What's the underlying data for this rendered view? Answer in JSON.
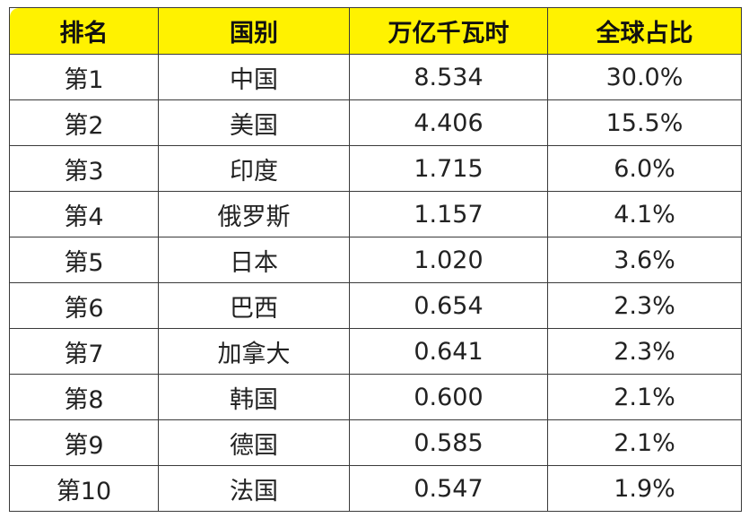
{
  "table": {
    "headers": [
      "排名",
      "国别",
      "万亿千瓦时",
      "全球占比"
    ],
    "rows": [
      [
        "第1",
        "中国",
        "8.534",
        "30.0%"
      ],
      [
        "第2",
        "美国",
        "4.406",
        "15.5%"
      ],
      [
        "第3",
        "印度",
        "1.715",
        "6.0%"
      ],
      [
        "第4",
        "俄罗斯",
        "1.157",
        "4.1%"
      ],
      [
        "第5",
        "日本",
        "1.020",
        "3.6%"
      ],
      [
        "第6",
        "巴西",
        "0.654",
        "2.3%"
      ],
      [
        "第7",
        "加拿大",
        "0.641",
        "2.3%"
      ],
      [
        "第8",
        "韩国",
        "0.600",
        "2.1%"
      ],
      [
        "第9",
        "德国",
        "0.585",
        "2.1%"
      ],
      [
        "第10",
        "法国",
        "0.547",
        "1.9%"
      ]
    ],
    "header_color": "#fff200"
  }
}
